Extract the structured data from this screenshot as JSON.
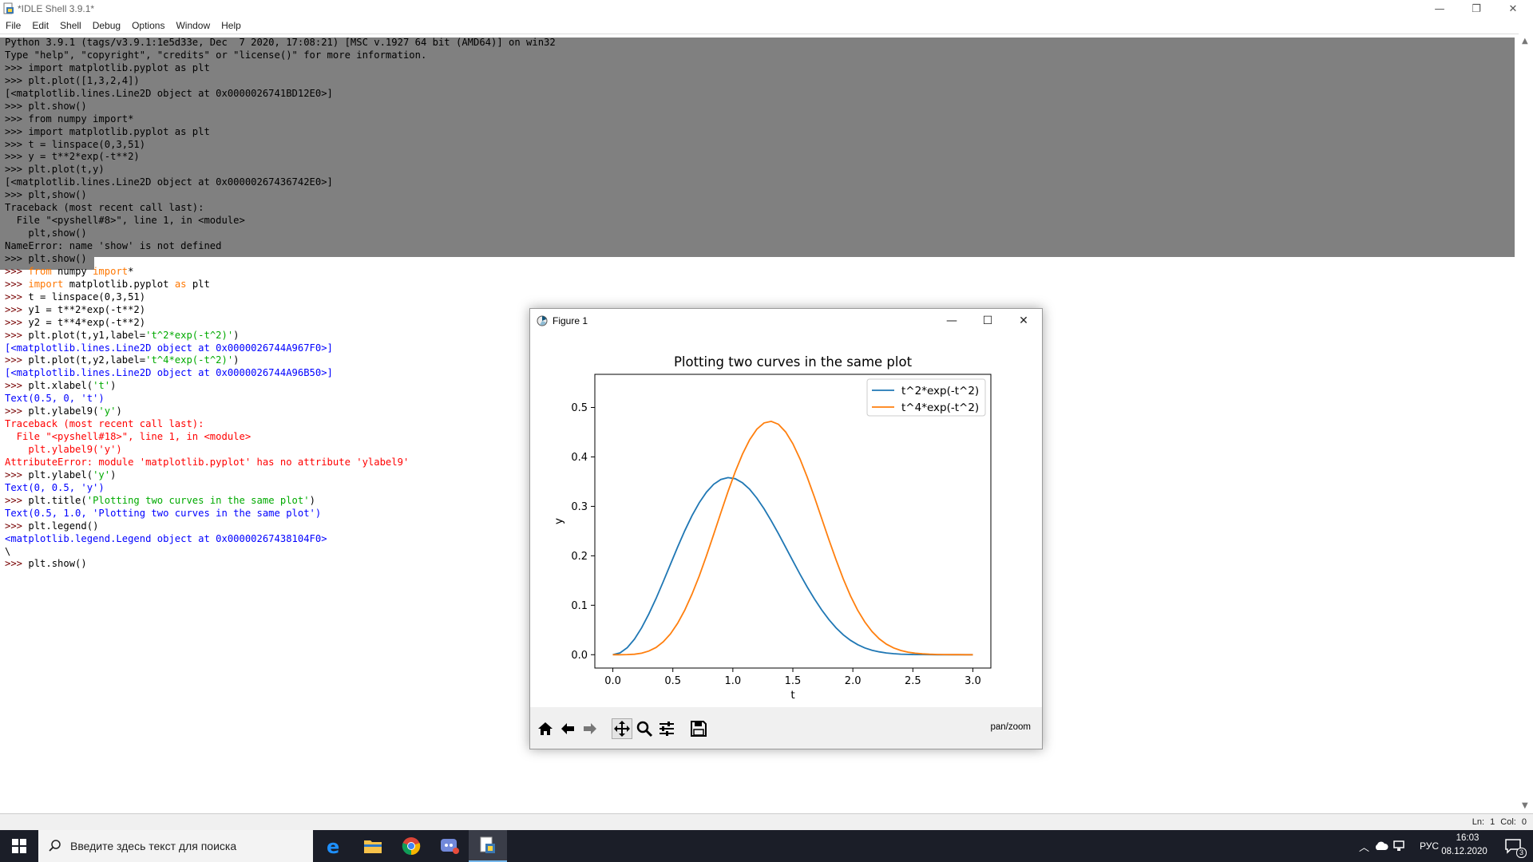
{
  "window": {
    "title": "*IDLE Shell 3.9.1*",
    "controls": {
      "minimize": "—",
      "restore": "❐",
      "close": "✕"
    }
  },
  "menu": [
    "File",
    "Edit",
    "Shell",
    "Debug",
    "Options",
    "Window",
    "Help"
  ],
  "shell": {
    "lines": [
      [
        {
          "t": "Python 3.9.1 (tags/v3.9.1:1e5d33e, Dec  7 2020, 17:08:21) [MSC v.1927 64 bit (AMD64)] on win32",
          "c": "k"
        }
      ],
      [
        {
          "t": "Type \"help\", \"copyright\", \"credits\" or \"license()\" for more information.",
          "c": "k"
        }
      ],
      [
        {
          "t": ">>> import matplotlib.pyplot as plt",
          "c": "k"
        }
      ],
      [
        {
          "t": ">>> plt.plot([1,3,2,4])",
          "c": "k"
        }
      ],
      [
        {
          "t": "[<matplotlib.lines.Line2D object at 0x0000026741BD12E0>]",
          "c": "k"
        }
      ],
      [
        {
          "t": ">>> plt.show()",
          "c": "k"
        }
      ],
      [
        {
          "t": ">>> from numpy import*",
          "c": "k"
        }
      ],
      [
        {
          "t": ">>> import matplotlib.pyplot as plt",
          "c": "k"
        }
      ],
      [
        {
          "t": ">>> t = linspace(0,3,51)",
          "c": "k"
        }
      ],
      [
        {
          "t": ">>> y = t**2*exp(-t**2)",
          "c": "k"
        }
      ],
      [
        {
          "t": ">>> plt.plot(t,y)",
          "c": "k"
        }
      ],
      [
        {
          "t": "[<matplotlib.lines.Line2D object at 0x00000267436742E0>]",
          "c": "k"
        }
      ],
      [
        {
          "t": ">>> plt,show()",
          "c": "k"
        }
      ],
      [
        {
          "t": "Traceback (most recent call last):",
          "c": "k"
        }
      ],
      [
        {
          "t": "  File \"<pyshell#8>\", line 1, in <module>",
          "c": "k"
        }
      ],
      [
        {
          "t": "    plt,show()",
          "c": "k"
        }
      ],
      [
        {
          "t": "NameError: name 'show' is not defined",
          "c": "k"
        }
      ],
      [
        {
          "t": ">>> plt.show()",
          "c": "k"
        }
      ],
      [
        {
          "t": ">>> ",
          "c": "p"
        },
        {
          "t": "from",
          "c": "o"
        },
        {
          "t": " numpy ",
          "c": "k"
        },
        {
          "t": "import",
          "c": "o"
        },
        {
          "t": "*",
          "c": "k"
        }
      ],
      [
        {
          "t": ">>> ",
          "c": "p"
        },
        {
          "t": "import",
          "c": "o"
        },
        {
          "t": " matplotlib.pyplot ",
          "c": "k"
        },
        {
          "t": "as",
          "c": "o"
        },
        {
          "t": " plt",
          "c": "k"
        }
      ],
      [
        {
          "t": ">>> ",
          "c": "p"
        },
        {
          "t": "t = linspace(0,3,51)",
          "c": "k"
        }
      ],
      [
        {
          "t": ">>> ",
          "c": "p"
        },
        {
          "t": "y1 = t**2*exp(-t**2)",
          "c": "k"
        }
      ],
      [
        {
          "t": ">>> ",
          "c": "p"
        },
        {
          "t": "y2 = t**4*exp(-t**2)",
          "c": "k"
        }
      ],
      [
        {
          "t": ">>> ",
          "c": "p"
        },
        {
          "t": "plt.plot(t,y1,label=",
          "c": "k"
        },
        {
          "t": "'t^2*exp(-t^2)'",
          "c": "s"
        },
        {
          "t": ")",
          "c": "k"
        }
      ],
      [
        {
          "t": "[<matplotlib.lines.Line2D object at 0x0000026744A967F0>]",
          "c": "b"
        }
      ],
      [
        {
          "t": ">>> ",
          "c": "p"
        },
        {
          "t": "plt.plot(t,y2,label=",
          "c": "k"
        },
        {
          "t": "'t^4*exp(-t^2)'",
          "c": "s"
        },
        {
          "t": ")",
          "c": "k"
        }
      ],
      [
        {
          "t": "[<matplotlib.lines.Line2D object at 0x0000026744A96B50>]",
          "c": "b"
        }
      ],
      [
        {
          "t": ">>> ",
          "c": "p"
        },
        {
          "t": "plt.xlabel(",
          "c": "k"
        },
        {
          "t": "'t'",
          "c": "s"
        },
        {
          "t": ")",
          "c": "k"
        }
      ],
      [
        {
          "t": "Text(0.5, 0, 't')",
          "c": "b"
        }
      ],
      [
        {
          "t": ">>> ",
          "c": "p"
        },
        {
          "t": "plt.ylabel9(",
          "c": "k"
        },
        {
          "t": "'y'",
          "c": "s"
        },
        {
          "t": ")",
          "c": "k"
        }
      ],
      [
        {
          "t": "Traceback (most recent call last):",
          "c": "r"
        }
      ],
      [
        {
          "t": "  File \"<pyshell#18>\", line 1, in <module>",
          "c": "r"
        }
      ],
      [
        {
          "t": "    plt.ylabel9('y')",
          "c": "r"
        }
      ],
      [
        {
          "t": "AttributeError: module 'matplotlib.pyplot' has no attribute 'ylabel9'",
          "c": "r"
        }
      ],
      [
        {
          "t": ">>> ",
          "c": "p"
        },
        {
          "t": "plt.ylabel(",
          "c": "k"
        },
        {
          "t": "'y'",
          "c": "s"
        },
        {
          "t": ")",
          "c": "k"
        }
      ],
      [
        {
          "t": "Text(0, 0.5, 'y')",
          "c": "b"
        }
      ],
      [
        {
          "t": ">>> ",
          "c": "p"
        },
        {
          "t": "plt.title(",
          "c": "k"
        },
        {
          "t": "'Plotting two curves in the same plot'",
          "c": "s"
        },
        {
          "t": ")",
          "c": "k"
        }
      ],
      [
        {
          "t": "Text(0.5, 1.0, 'Plotting two curves in the same plot')",
          "c": "b"
        }
      ],
      [
        {
          "t": ">>> ",
          "c": "p"
        },
        {
          "t": "plt.legend()",
          "c": "k"
        }
      ],
      [
        {
          "t": "<matplotlib.legend.Legend object at 0x00000267438104F0>",
          "c": "b"
        }
      ],
      [
        {
          "t": "\\",
          "c": "k"
        }
      ],
      [
        {
          "t": ">>> ",
          "c": "p"
        },
        {
          "t": "plt.show()",
          "c": "k"
        }
      ]
    ]
  },
  "statusbar": {
    "position": "Ln: 1   Col: 0"
  },
  "taskbar": {
    "search_placeholder": "Введите здесь текст для поиска",
    "lang": "РУС",
    "time": "16:03",
    "date": "08.12.2020",
    "notifications": "3"
  },
  "figure": {
    "title": "Figure 1",
    "mode": "pan/zoom",
    "controls": {
      "minimize": "—",
      "maximize": "☐",
      "close": "✕"
    }
  },
  "chart_data": {
    "type": "line",
    "title": "Plotting two curves in the same plot",
    "xlabel": "t",
    "ylabel": "y",
    "xlim": [
      -0.15,
      3.15
    ],
    "ylim": [
      -0.027,
      0.567
    ],
    "xticks": [
      "0.0",
      "0.5",
      "1.0",
      "1.5",
      "2.0",
      "2.5",
      "3.0"
    ],
    "yticks": [
      "0.0",
      "0.1",
      "0.2",
      "0.3",
      "0.4",
      "0.5"
    ],
    "legend_position": "top-right",
    "series": [
      {
        "name": "t^2*exp(-t^2)",
        "color": "#1f77b4",
        "x": [
          0.0,
          0.06,
          0.12,
          0.18,
          0.24,
          0.3,
          0.36,
          0.42,
          0.48,
          0.54,
          0.6,
          0.66,
          0.72,
          0.78,
          0.84,
          0.9,
          0.96,
          1.02,
          1.08,
          1.14,
          1.2,
          1.26,
          1.32,
          1.38,
          1.44,
          1.5,
          1.56,
          1.62,
          1.68,
          1.74,
          1.8,
          1.86,
          1.92,
          1.98,
          2.04,
          2.1,
          2.16,
          2.22,
          2.28,
          2.34,
          2.4,
          2.46,
          2.52,
          2.58,
          2.64,
          2.7,
          2.76,
          2.82,
          2.88,
          2.94,
          3.0
        ],
        "y": [
          0.0,
          0.0036,
          0.0142,
          0.0314,
          0.0544,
          0.0822,
          0.1138,
          0.1478,
          0.1829,
          0.2177,
          0.2509,
          0.2811,
          0.3074,
          0.3288,
          0.3446,
          0.3544,
          0.3581,
          0.3558,
          0.3477,
          0.3345,
          0.3167,
          0.2952,
          0.2709,
          0.2446,
          0.2172,
          0.1897,
          0.1626,
          0.1368,
          0.1126,
          0.0907,
          0.0712,
          0.0543,
          0.0403,
          0.0291,
          0.0203,
          0.0137,
          0.009,
          0.0057,
          0.0035,
          0.002,
          0.0011,
          0.0006,
          0.0003,
          0.0002,
          0.0001,
          0.0,
          0.0,
          0.0,
          0.0,
          0.0,
          0.0
        ]
      },
      {
        "name": "t^4*exp(-t^2)",
        "color": "#ff7f0e",
        "x": [
          0.0,
          0.06,
          0.12,
          0.18,
          0.24,
          0.3,
          0.36,
          0.42,
          0.48,
          0.54,
          0.6,
          0.66,
          0.72,
          0.78,
          0.84,
          0.9,
          0.96,
          1.02,
          1.08,
          1.14,
          1.2,
          1.26,
          1.32,
          1.38,
          1.44,
          1.5,
          1.56,
          1.62,
          1.68,
          1.74,
          1.8,
          1.86,
          1.92,
          1.98,
          2.04,
          2.1,
          2.16,
          2.22,
          2.28,
          2.34,
          2.4,
          2.46,
          2.52,
          2.58,
          2.64,
          2.7,
          2.76,
          2.82,
          2.88,
          2.94,
          3.0
        ],
        "y": [
          0.0,
          0.0,
          0.0002,
          0.001,
          0.0031,
          0.0074,
          0.0147,
          0.0261,
          0.0421,
          0.0635,
          0.0903,
          0.1224,
          0.1593,
          0.2001,
          0.2431,
          0.287,
          0.33,
          0.3702,
          0.4056,
          0.4347,
          0.4561,
          0.4687,
          0.472,
          0.4659,
          0.4505,
          0.4268,
          0.3957,
          0.3591,
          0.3184,
          0.2756,
          0.2329,
          0.192,
          0.1535,
          0.1193,
          0.0898,
          0.066,
          0.0468,
          0.0321,
          0.0213,
          0.0136,
          0.0085,
          0.0051,
          0.003,
          0.0017,
          0.0009,
          0.0005,
          0.0003,
          0.0001,
          0.0001,
          0.0,
          0.0
        ]
      }
    ]
  }
}
